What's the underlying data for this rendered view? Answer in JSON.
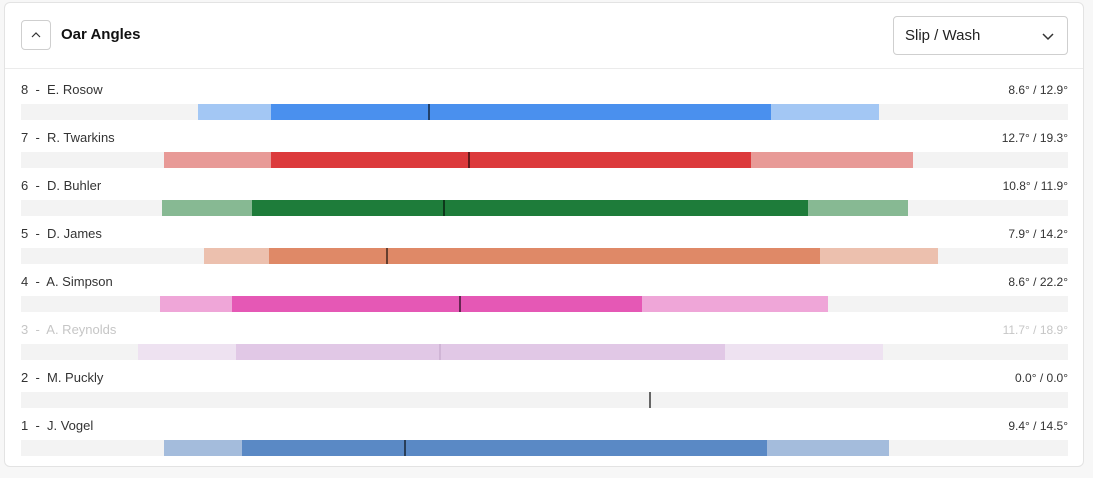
{
  "header": {
    "title": "Oar Angles",
    "select_value": "Slip / Wash"
  },
  "axis": {
    "min": 0,
    "max": 1047
  },
  "rows": [
    {
      "seat": "8",
      "name": "E. Rosow",
      "label": "8  -  E. Rosow",
      "value": "8.6° / 12.9°",
      "color": "#4a90ee",
      "light": "#a3c7f4",
      "start": 177,
      "slip_end": 250,
      "wash_start": 750,
      "end": 858,
      "marker": 408,
      "disabled": false
    },
    {
      "seat": "7",
      "name": "R. Twarkins",
      "label": "7  -  R. Twarkins",
      "value": "12.7° / 19.3°",
      "color": "#dc3a3c",
      "light": "#e89a97",
      "start": 143,
      "slip_end": 250,
      "wash_start": 730,
      "end": 892,
      "marker": 448,
      "disabled": false
    },
    {
      "seat": "6",
      "name": "D. Buhler",
      "label": "6  -  D. Buhler",
      "value": "10.8° / 11.9°",
      "color": "#1e7c3a",
      "light": "#87b993",
      "start": 141,
      "slip_end": 231,
      "wash_start": 787,
      "end": 887,
      "marker": 423,
      "disabled": false
    },
    {
      "seat": "5",
      "name": "D. James",
      "label": "5  -  D. James",
      "value": "7.9° / 14.2°",
      "color": "#df8967",
      "light": "#ecc0ae",
      "start": 183,
      "slip_end": 248,
      "wash_start": 799,
      "end": 917,
      "marker": 366,
      "disabled": false
    },
    {
      "seat": "4",
      "name": "A. Simpson",
      "label": "4  -  A. Simpson",
      "value": "8.6° / 22.2°",
      "color": "#e558b5",
      "light": "#efa6d8",
      "start": 139,
      "slip_end": 211,
      "wash_start": 621,
      "end": 807,
      "marker": 439,
      "disabled": false
    },
    {
      "seat": "3",
      "name": "A. Reynolds",
      "label": "3  -  A. Reynolds",
      "value": "11.7° / 18.9°",
      "color": "#e1c8e6",
      "light": "#eee2f1",
      "start": 117,
      "slip_end": 215,
      "wash_start": 704,
      "end": 862,
      "marker": 419,
      "disabled": true
    },
    {
      "seat": "2",
      "name": "M. Puckly",
      "label": "2  -  M. Puckly",
      "value": "0.0° / 0.0°",
      "color": "#555555",
      "light": "#555555",
      "start": 629,
      "slip_end": 629,
      "wash_start": 629,
      "end": 629,
      "marker": 629,
      "disabled": false
    },
    {
      "seat": "1",
      "name": "J. Vogel",
      "label": "1  -  J. Vogel",
      "value": "9.4° / 14.5°",
      "color": "#5a89c5",
      "light": "#a4bcdc",
      "start": 143,
      "slip_end": 221,
      "wash_start": 746,
      "end": 868,
      "marker": 384,
      "disabled": false
    }
  ]
}
